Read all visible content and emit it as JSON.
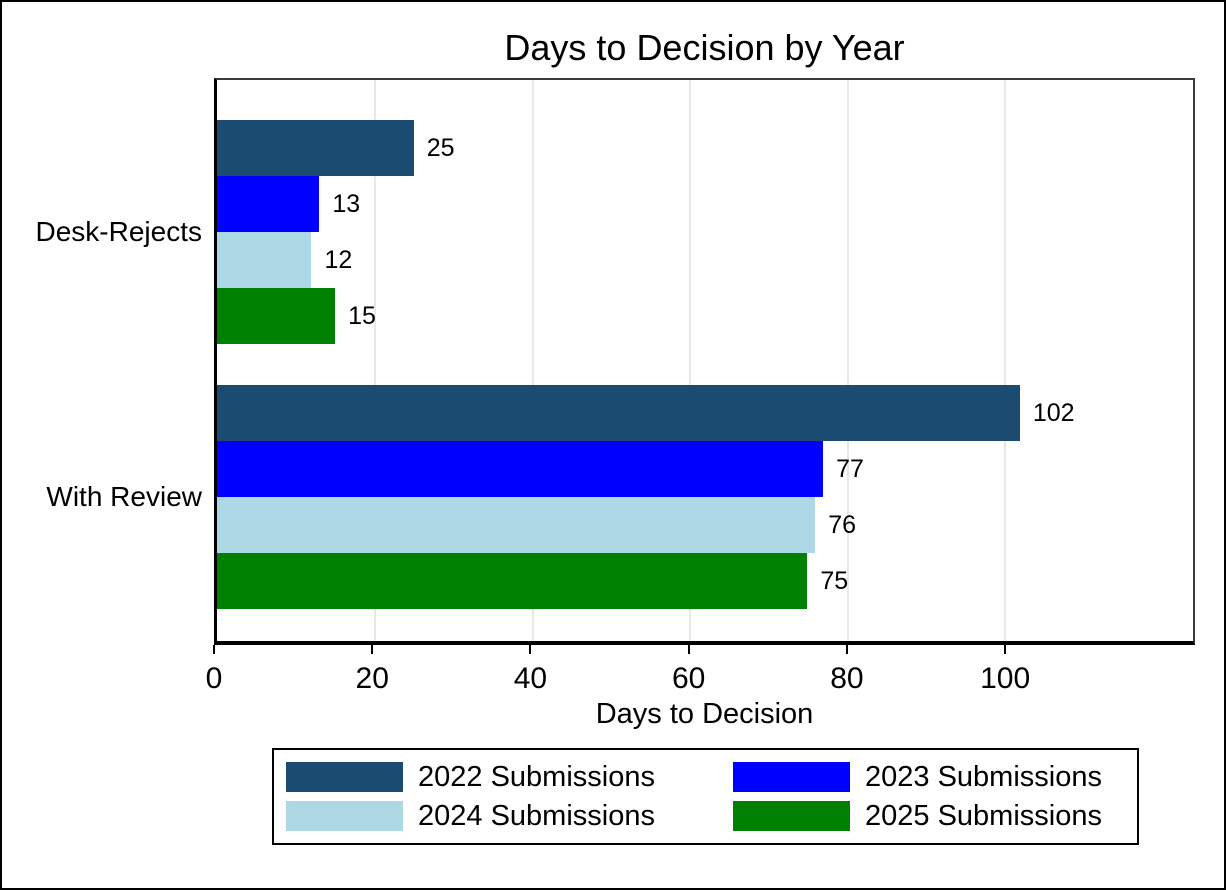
{
  "chart_data": {
    "type": "bar",
    "orientation": "horizontal",
    "title": "Days to Decision by Year",
    "xlabel": "Days to Decision",
    "categories": [
      "Desk-Rejects",
      "With Review"
    ],
    "series": [
      {
        "name": "2022 Submissions",
        "color": "#1c4b72",
        "values": [
          25,
          102
        ]
      },
      {
        "name": "2023 Submissions",
        "color": "#0000ff",
        "values": [
          13,
          77
        ]
      },
      {
        "name": "2024 Submissions",
        "color": "#add8e6",
        "values": [
          12,
          76
        ]
      },
      {
        "name": "2025 Submissions",
        "color": "#008000",
        "values": [
          15,
          75
        ]
      }
    ],
    "xticks": [
      0,
      20,
      40,
      60,
      80,
      100
    ],
    "xlim": [
      0,
      124
    ],
    "grid": "vertical",
    "gridline_color": "#e7e7e7",
    "bar_label_values_shown": true,
    "legend_position": "bottom"
  },
  "frame": {
    "background": "#ffffff",
    "border_color": "#000000"
  }
}
